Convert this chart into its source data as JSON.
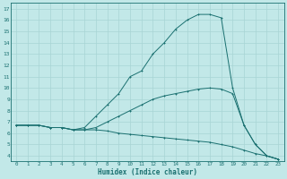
{
  "xlabel": "Humidex (Indice chaleur)",
  "background_color": "#c2e8e8",
  "grid_color": "#a8d4d4",
  "line_color": "#1a7070",
  "xlim": [
    -0.5,
    23.5
  ],
  "ylim": [
    3.5,
    17.5
  ],
  "xticks": [
    0,
    1,
    2,
    3,
    4,
    5,
    6,
    7,
    8,
    9,
    10,
    11,
    12,
    13,
    14,
    15,
    16,
    17,
    18,
    19,
    20,
    21,
    22,
    23
  ],
  "yticks": [
    4,
    5,
    6,
    7,
    8,
    9,
    10,
    11,
    12,
    13,
    14,
    15,
    16,
    17
  ],
  "line1_x": [
    0,
    1,
    2,
    3,
    4,
    5,
    6,
    7,
    8,
    9,
    10,
    11,
    12,
    13,
    14,
    15,
    16,
    17,
    18,
    19,
    20,
    21,
    22,
    23
  ],
  "line1_y": [
    6.7,
    6.7,
    6.7,
    6.5,
    6.5,
    6.3,
    6.5,
    7.5,
    8.5,
    9.5,
    11.0,
    11.5,
    13.0,
    14.0,
    15.2,
    16.0,
    16.5,
    16.5,
    16.2,
    10.0,
    6.7,
    5.0,
    4.0,
    3.7
  ],
  "line2_x": [
    0,
    1,
    2,
    3,
    4,
    5,
    6,
    7,
    8,
    9,
    10,
    11,
    12,
    13,
    14,
    15,
    16,
    17,
    18,
    19,
    20,
    21,
    22,
    23
  ],
  "line2_y": [
    6.7,
    6.7,
    6.7,
    6.5,
    6.5,
    6.3,
    6.3,
    6.5,
    7.0,
    7.5,
    8.0,
    8.5,
    9.0,
    9.3,
    9.5,
    9.7,
    9.9,
    10.0,
    9.9,
    9.5,
    6.7,
    5.0,
    4.0,
    3.7
  ],
  "line3_x": [
    0,
    1,
    2,
    3,
    4,
    5,
    6,
    7,
    8,
    9,
    10,
    11,
    12,
    13,
    14,
    15,
    16,
    17,
    18,
    19,
    20,
    21,
    22,
    23
  ],
  "line3_y": [
    6.7,
    6.7,
    6.7,
    6.5,
    6.5,
    6.3,
    6.3,
    6.3,
    6.2,
    6.0,
    5.9,
    5.8,
    5.7,
    5.6,
    5.5,
    5.4,
    5.3,
    5.2,
    5.0,
    4.8,
    4.5,
    4.2,
    4.0,
    3.7
  ]
}
